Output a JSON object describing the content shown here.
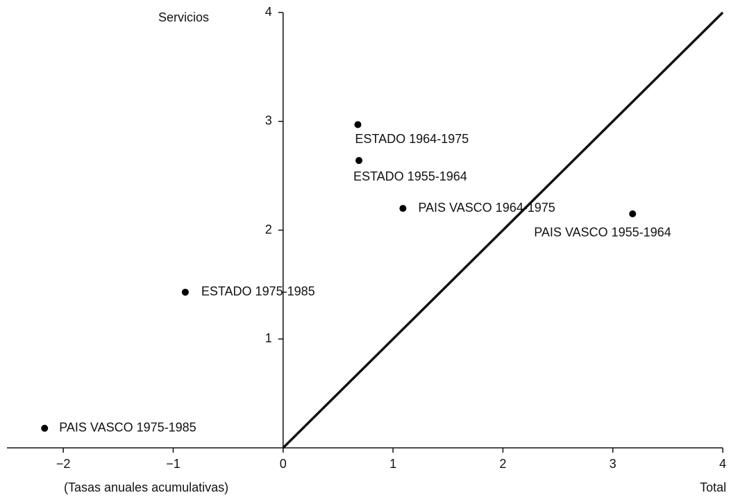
{
  "chart_data": {
    "type": "scatter",
    "ylabel": "Servicios",
    "xlabel": "Total",
    "note": "(Tasas anuales acumulativas)",
    "x": [
      0.68,
      0.69,
      1.09,
      3.18,
      -0.89,
      -2.17
    ],
    "values": [
      2.97,
      2.64,
      2.2,
      2.15,
      1.43,
      0.18
    ],
    "point_labels": [
      "ESTADO 1964-1975",
      "ESTADO 1955-1964",
      "PAIS VASCO 1964-1975",
      "PAIS VASCO 1955-1964",
      "ESTADO 1975-1985",
      "PAIS VASCO 1975-1985"
    ],
    "color": "#000000",
    "xlim": [
      -2.5,
      4
    ],
    "ylim": [
      0,
      4
    ],
    "xticks": [
      {
        "value": -2,
        "label": "−2"
      },
      {
        "value": -1,
        "label": "−1"
      },
      0,
      1,
      2,
      3,
      4
    ],
    "yticks": [
      1,
      2,
      3,
      4
    ],
    "diagonal": true,
    "grid": false
  }
}
